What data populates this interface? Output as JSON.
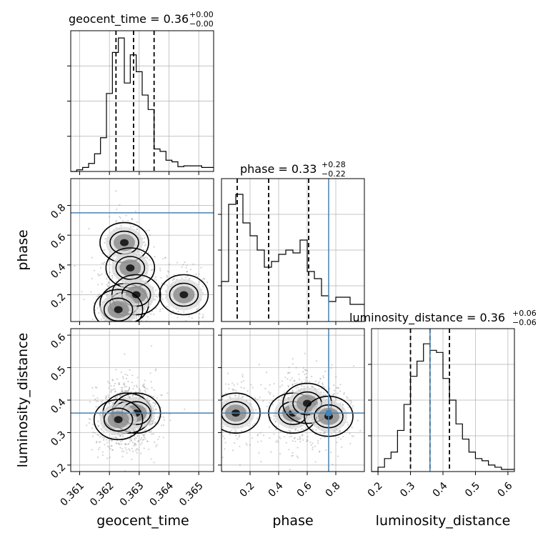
{
  "chart_data": {
    "type": "corner",
    "parameters": [
      "geocent_time",
      "phase",
      "luminosity_distance"
    ],
    "truths": {
      "phase": 0.75,
      "luminosity_distance": 0.36
    },
    "grid": true,
    "axes_labels": {
      "x": [
        "geocent_time",
        "phase",
        "luminosity_distance"
      ],
      "y": [
        "phase",
        "luminosity_distance"
      ]
    },
    "panels": {
      "hist_geocent_time": {
        "title_param": "geocent_time = 0.36",
        "title_sup": "+0.00",
        "title_sub": "−0.00",
        "xlim": [
          0.3607,
          0.3655
        ],
        "ticks": [
          0.361,
          0.362,
          0.363,
          0.364,
          0.365
        ],
        "tick_labels": [
          "0.361",
          "0.362",
          "0.363",
          "0.364",
          "0.365"
        ],
        "quantiles": [
          0.36222,
          0.36281,
          0.3635
        ],
        "bin_edges": [
          0.3607,
          0.3609,
          0.3611,
          0.3613,
          0.3615,
          0.3617,
          0.3619,
          0.3621,
          0.3623,
          0.3625,
          0.3627,
          0.3629,
          0.3631,
          0.3633,
          0.3635,
          0.3637,
          0.3639,
          0.3641,
          0.3643,
          0.3645,
          0.3647,
          0.3649,
          0.3651,
          0.3653,
          0.3655
        ],
        "counts": [
          0,
          2,
          5,
          10,
          22,
          42,
          97,
          148,
          166,
          110,
          145,
          124,
          95,
          77,
          28,
          25,
          14,
          12,
          6,
          7,
          7,
          7,
          5,
          5
        ],
        "ymax": 175
      },
      "hist_phase": {
        "title_param": "phase = 0.33",
        "title_sup": "+0.28",
        "title_sub": "−0.22",
        "xlim": [
          0.0,
          1.0
        ],
        "ticks": [
          0.2,
          0.4,
          0.6,
          0.8
        ],
        "tick_labels": [
          "0.2",
          "0.4",
          "0.6",
          "0.8"
        ],
        "quantiles": [
          0.11,
          0.33,
          0.61
        ],
        "truth": 0.75,
        "bin_edges": [
          0.0,
          0.05,
          0.1,
          0.15,
          0.2,
          0.25,
          0.3,
          0.35,
          0.4,
          0.45,
          0.5,
          0.55,
          0.6,
          0.65,
          0.7,
          0.75,
          0.8,
          0.85,
          0.9,
          0.95,
          1.0
        ],
        "counts": [
          28,
          82,
          89,
          69,
          60,
          50,
          38,
          42,
          47,
          50,
          48,
          57,
          35,
          30,
          18,
          14,
          17,
          17,
          12,
          12
        ],
        "ymax": 100
      },
      "hist_luminosity_distance": {
        "title_param": "luminosity_distance = 0.36",
        "title_sup": "+0.06",
        "title_sub": "−0.06",
        "xlim": [
          0.18,
          0.62
        ],
        "ticks": [
          0.2,
          0.3,
          0.4,
          0.5,
          0.6
        ],
        "tick_labels": [
          "0.2",
          "0.3",
          "0.4",
          "0.5",
          "0.6"
        ],
        "quantiles": [
          0.3,
          0.36,
          0.42
        ],
        "truth": 0.36,
        "bin_edges": [
          0.18,
          0.2,
          0.22,
          0.24,
          0.26,
          0.28,
          0.3,
          0.32,
          0.34,
          0.36,
          0.38,
          0.4,
          0.42,
          0.44,
          0.46,
          0.48,
          0.5,
          0.52,
          0.54,
          0.56,
          0.58,
          0.6,
          0.62
        ],
        "counts": [
          0,
          2,
          6,
          9,
          19,
          31,
          44,
          51,
          59,
          56,
          55,
          43,
          33,
          22,
          15,
          9,
          6,
          5,
          3,
          2,
          1,
          1
        ],
        "ymax": 66
      },
      "scatter_phase_vs_geocent_time": {
        "x_param": "geocent_time",
        "y_param": "phase",
        "xlim": [
          0.3607,
          0.3655
        ],
        "ylim": [
          0.02,
          0.98
        ],
        "yticks": [
          0.2,
          0.4,
          0.6,
          0.8
        ],
        "ytick_labels": [
          "0.2",
          "0.4",
          "0.6",
          "0.8"
        ],
        "truth_y": 0.75,
        "density_centers": [
          [
            0.3625,
            0.55
          ],
          [
            0.3627,
            0.38
          ],
          [
            0.3625,
            0.14
          ],
          [
            0.3629,
            0.2
          ],
          [
            0.3623,
            0.1
          ],
          [
            0.3645,
            0.2
          ]
        ]
      },
      "scatter_luminosity_distance_vs_geocent_time": {
        "x_param": "geocent_time",
        "y_param": "luminosity_distance",
        "xlim": [
          0.3607,
          0.3655
        ],
        "ylim": [
          0.18,
          0.62
        ],
        "yticks": [
          0.2,
          0.3,
          0.4,
          0.5,
          0.6
        ],
        "ytick_labels": [
          "0.2",
          "0.3",
          "0.4",
          "0.5",
          "0.6"
        ],
        "truth_y": 0.36,
        "density_centers": [
          [
            0.3626,
            0.36
          ],
          [
            0.3629,
            0.36
          ],
          [
            0.3623,
            0.34
          ]
        ]
      },
      "scatter_luminosity_distance_vs_phase": {
        "x_param": "phase",
        "y_param": "luminosity_distance",
        "xlim": [
          0.0,
          1.0
        ],
        "ylim": [
          0.18,
          0.62
        ],
        "truth_x": 0.75,
        "truth_y": 0.36,
        "density_centers": [
          [
            0.1,
            0.36
          ],
          [
            0.5,
            0.36
          ],
          [
            0.6,
            0.39
          ],
          [
            0.75,
            0.35
          ]
        ]
      }
    },
    "colors": {
      "truth": "#4682b4",
      "hist": "#000000",
      "grid": "#b0b0b0",
      "density": "#000000"
    }
  }
}
